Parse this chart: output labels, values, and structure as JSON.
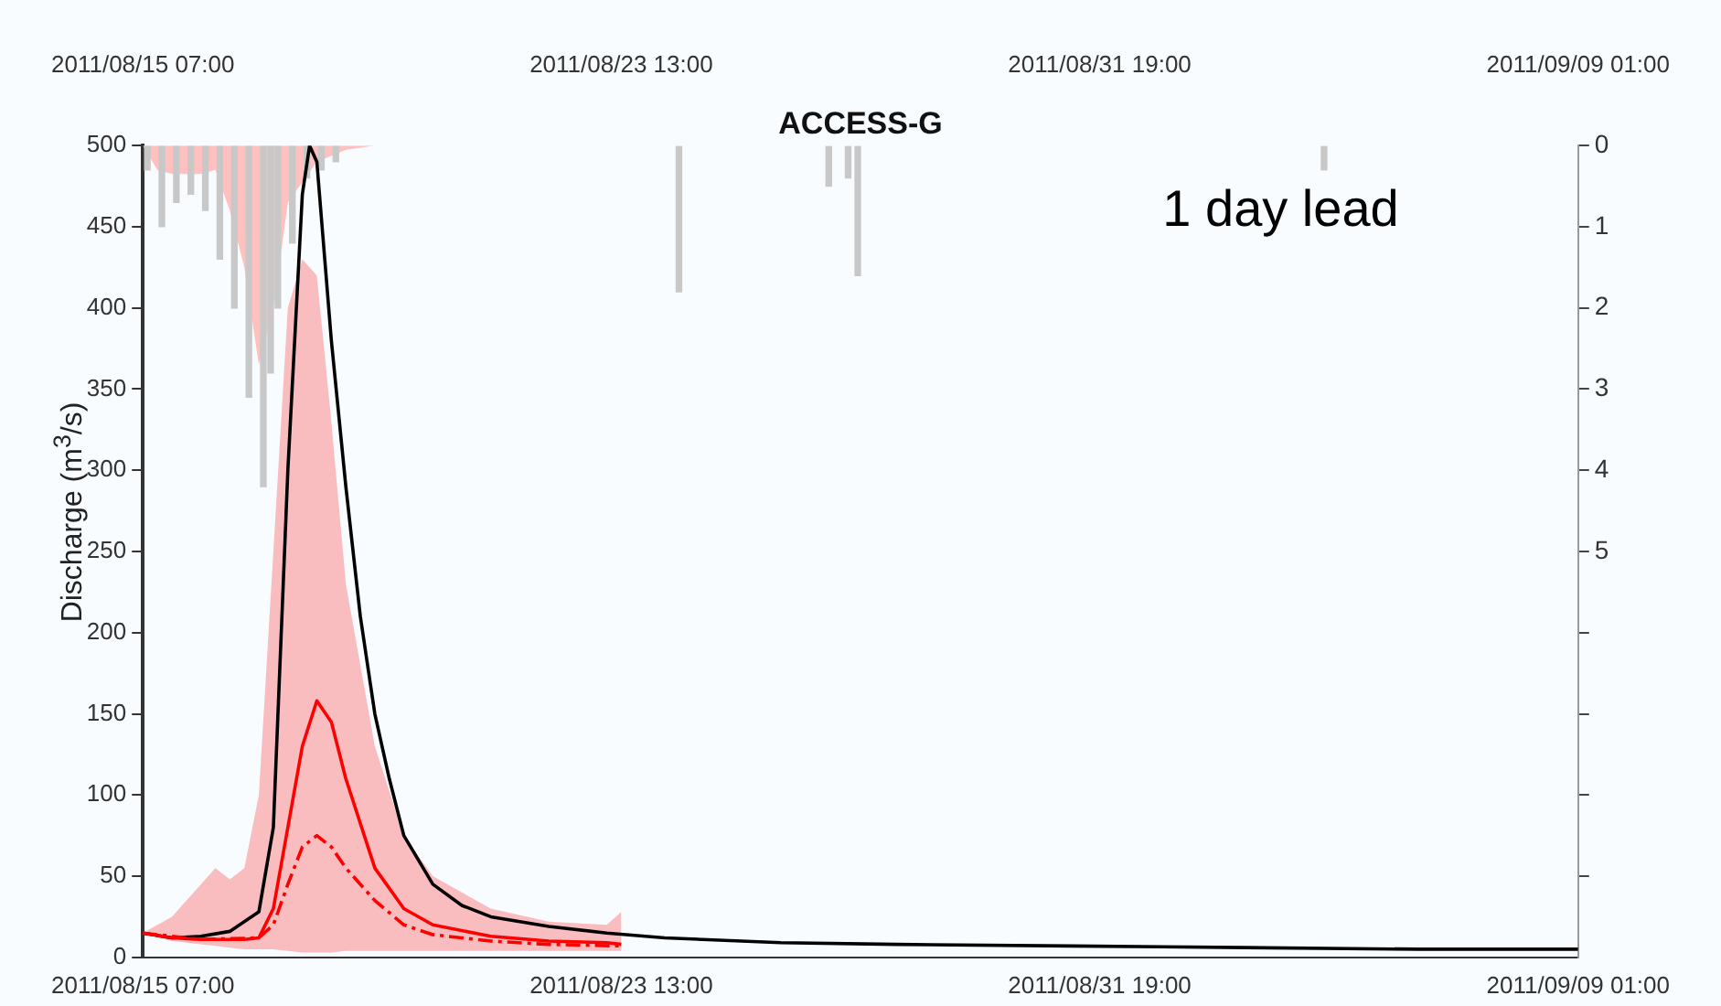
{
  "chart_data": {
    "type": "line",
    "title": "ACCESS-G",
    "ylabel": "Discharge (m$^{3}$/s)",
    "annotations": [
      "1 day lead"
    ],
    "grid": false,
    "legend": false,
    "marker": "none",
    "xlim": [
      "2011-08-15T07:00",
      "2011-09-09T01:00"
    ],
    "xticks": [
      {
        "value": "2011-08-15T07:00",
        "label": "2011/08/15 07:00"
      },
      {
        "value": "2011-08-23T13:00",
        "label": "2011/08/23 13:00"
      },
      {
        "value": "2011-08-31T19:00",
        "label": "2011/08/31 19:00"
      },
      {
        "value": "2011-09-09T01:00",
        "label": "2011/09/09 01:00"
      }
    ],
    "x2lim": [
      "2011-08-15T07:00",
      "2011-09-09T01:00"
    ],
    "x2ticks": [
      {
        "value": "2011-08-15T07:00",
        "label": "2011/08/15 07:00"
      },
      {
        "value": "2011-08-23T13:00",
        "label": "2011/08/23 13:00"
      },
      {
        "value": "2011-08-31T19:00",
        "label": "2011/08/31 19:00"
      },
      {
        "value": "2011-09-09T01:00",
        "label": "2011/09/09 01:00"
      }
    ],
    "ylim": [
      0,
      500
    ],
    "yticks": [
      0,
      50,
      100,
      150,
      200,
      250,
      300,
      350,
      400,
      450,
      500
    ],
    "y2lim": [
      10,
      0
    ],
    "y2ticks": [
      0,
      1,
      2,
      3,
      4,
      5,
      {
        "value": 6,
        "label": null
      },
      {
        "value": 7,
        "label": null
      },
      {
        "value": 8,
        "label": null
      },
      {
        "value": 9,
        "label": null
      }
    ],
    "series": [
      {
        "type": "bar",
        "axis": "y2",
        "color": "#c8c8c8",
        "x": [
          "2011-08-15T10:00",
          "2011-08-15T16:00",
          "2011-08-15T22:00",
          "2011-08-16T04:00",
          "2011-08-16T10:00",
          "2011-08-16T16:00",
          "2011-08-16T22:00",
          "2011-08-17T04:00",
          "2011-08-17T10:00",
          "2011-08-17T13:00",
          "2011-08-17T16:00",
          "2011-08-17T22:00",
          "2011-08-18T04:00",
          "2011-08-18T10:00",
          "2011-08-18T16:00",
          "2011-08-24T14:00",
          "2011-08-27T04:00",
          "2011-08-27T12:00",
          "2011-08-27T16:00",
          "2011-09-04T17:00"
        ],
        "values": [
          0.3,
          1.0,
          0.7,
          0.6,
          0.8,
          1.4,
          2.0,
          3.1,
          4.2,
          2.8,
          2.0,
          1.2,
          0.4,
          0.3,
          0.2,
          1.8,
          0.5,
          0.4,
          1.6,
          0.3
        ]
      },
      {
        "type": "area",
        "axis": "y2",
        "color": "#ffc0c0",
        "x": [
          "2011-08-15T07:00",
          "2011-08-15T13:00",
          "2011-08-15T19:00",
          "2011-08-16T07:00",
          "2011-08-16T13:00",
          "2011-08-16T19:00",
          "2011-08-17T01:00",
          "2011-08-17T07:00",
          "2011-08-17T13:00",
          "2011-08-17T19:00",
          "2011-08-18T07:00",
          "2011-08-18T19:00",
          "2011-08-19T07:00"
        ],
        "values": [
          0,
          0.3,
          0.35,
          0.35,
          0.3,
          0.8,
          1.5,
          2.7,
          2.0,
          0.7,
          0.2,
          0.05,
          0
        ]
      },
      {
        "color": "#ff0000",
        "line_style": "solid",
        "x": [
          "2011-08-15T07:00",
          "2011-08-15T19:00",
          "2011-08-16T07:00",
          "2011-08-16T13:00",
          "2011-08-16T19:00",
          "2011-08-17T01:00",
          "2011-08-17T07:00",
          "2011-08-17T13:00",
          "2011-08-17T19:00",
          "2011-08-18T01:00",
          "2011-08-18T07:00",
          "2011-08-18T13:00",
          "2011-08-18T19:00",
          "2011-08-19T07:00",
          "2011-08-19T19:00",
          "2011-08-20T07:00",
          "2011-08-21T07:00",
          "2011-08-22T07:00",
          "2011-08-23T07:00",
          "2011-08-23T13:00"
        ],
        "values": [
          15,
          12,
          11,
          11,
          11,
          11,
          12,
          30,
          80,
          130,
          158,
          145,
          110,
          55,
          30,
          20,
          13,
          10,
          9,
          8
        ],
        "lower": [
          15,
          10,
          8,
          7,
          6,
          5,
          5,
          5,
          4,
          3,
          3,
          3,
          4,
          4,
          4,
          4,
          4,
          4,
          4,
          4
        ],
        "upper": [
          15,
          25,
          45,
          55,
          48,
          55,
          100,
          250,
          400,
          430,
          420,
          330,
          230,
          130,
          75,
          50,
          30,
          22,
          20,
          28
        ]
      },
      {
        "color": "#ff0000",
        "line_style": "dashed",
        "x": [
          "2011-08-15T07:00",
          "2011-08-16T07:00",
          "2011-08-17T07:00",
          "2011-08-17T13:00",
          "2011-08-17T19:00",
          "2011-08-18T01:00",
          "2011-08-18T07:00",
          "2011-08-18T13:00",
          "2011-08-18T19:00",
          "2011-08-19T07:00",
          "2011-08-19T19:00",
          "2011-08-20T07:00",
          "2011-08-21T07:00",
          "2011-08-22T07:00",
          "2011-08-23T13:00"
        ],
        "values": [
          15,
          11,
          12,
          20,
          45,
          68,
          75,
          68,
          55,
          35,
          20,
          14,
          10,
          8,
          7
        ]
      },
      {
        "color": "#000000",
        "line_style": "solid",
        "x": [
          "2011-08-15T07:00",
          "2011-08-15T19:00",
          "2011-08-16T07:00",
          "2011-08-16T19:00",
          "2011-08-17T07:00",
          "2011-08-17T13:00",
          "2011-08-17T19:00",
          "2011-08-18T01:00",
          "2011-08-18T04:00",
          "2011-08-18T07:00",
          "2011-08-18T13:00",
          "2011-08-18T19:00",
          "2011-08-19T01:00",
          "2011-08-19T07:00",
          "2011-08-19T13:00",
          "2011-08-19T19:00",
          "2011-08-20T07:00",
          "2011-08-20T19:00",
          "2011-08-21T07:00",
          "2011-08-22T07:00",
          "2011-08-23T07:00",
          "2011-08-24T07:00",
          "2011-08-26T07:00",
          "2011-08-28T07:00",
          "2011-08-31T07:00",
          "2011-09-03T07:00",
          "2011-09-06T07:00",
          "2011-09-09T01:00"
        ],
        "values": [
          15,
          12,
          13,
          16,
          28,
          80,
          300,
          470,
          500,
          490,
          380,
          290,
          210,
          150,
          110,
          75,
          45,
          32,
          25,
          19,
          15,
          12,
          9,
          8,
          7,
          6,
          5,
          5
        ]
      }
    ]
  }
}
